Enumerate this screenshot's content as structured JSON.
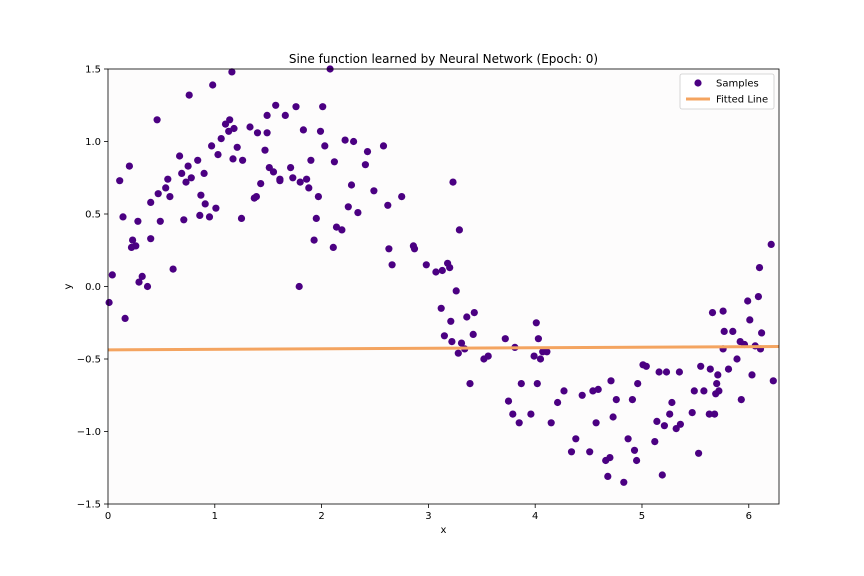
{
  "chart_data": {
    "type": "scatter",
    "title": "Sine function learned by Neural Network (Epoch: 0)",
    "xlabel": "x",
    "ylabel": "y",
    "xlim": [
      0,
      6.283
    ],
    "ylim": [
      -1.5,
      1.5
    ],
    "xticks": [
      0,
      1,
      2,
      3,
      4,
      5,
      6
    ],
    "yticks": [
      -1.5,
      -1.0,
      -0.5,
      0.0,
      0.5,
      1.0,
      1.5
    ],
    "xtick_labels": [
      "0",
      "1",
      "2",
      "3",
      "4",
      "5",
      "6"
    ],
    "ytick_labels": [
      "−1.5",
      "−1.0",
      "−0.5",
      "0.0",
      "0.5",
      "1.0",
      "1.5"
    ],
    "grid": false,
    "legend_position": "upper right",
    "colors": {
      "samples": "#4b0082",
      "fitted": "#f4a460"
    },
    "series": [
      {
        "name": "Samples",
        "kind": "scatter",
        "points": [
          [
            0.01,
            -0.11
          ],
          [
            0.04,
            0.08
          ],
          [
            0.11,
            0.73
          ],
          [
            0.14,
            0.48
          ],
          [
            0.16,
            -0.22
          ],
          [
            0.2,
            0.83
          ],
          [
            0.22,
            0.27
          ],
          [
            0.23,
            0.32
          ],
          [
            0.26,
            0.28
          ],
          [
            0.28,
            0.45
          ],
          [
            0.29,
            0.03
          ],
          [
            0.32,
            0.07
          ],
          [
            0.37,
            0.0
          ],
          [
            0.4,
            0.58
          ],
          [
            0.4,
            0.33
          ],
          [
            0.46,
            1.15
          ],
          [
            0.47,
            0.64
          ],
          [
            0.49,
            0.45
          ],
          [
            0.54,
            0.68
          ],
          [
            0.56,
            0.74
          ],
          [
            0.58,
            0.62
          ],
          [
            0.61,
            0.12
          ],
          [
            0.67,
            0.9
          ],
          [
            0.69,
            0.78
          ],
          [
            0.71,
            0.46
          ],
          [
            0.73,
            0.72
          ],
          [
            0.75,
            0.83
          ],
          [
            0.76,
            1.32
          ],
          [
            0.78,
            0.75
          ],
          [
            0.84,
            0.87
          ],
          [
            0.86,
            0.49
          ],
          [
            0.87,
            0.63
          ],
          [
            0.9,
            0.78
          ],
          [
            0.91,
            0.57
          ],
          [
            0.97,
            0.97
          ],
          [
            0.98,
            1.39
          ],
          [
            1.01,
            0.54
          ],
          [
            1.06,
            1.02
          ],
          [
            1.1,
            1.12
          ],
          [
            1.13,
            1.07
          ],
          [
            1.14,
            1.15
          ],
          [
            1.16,
            1.48
          ],
          [
            1.17,
            0.88
          ],
          [
            1.18,
            1.09
          ],
          [
            1.21,
            0.96
          ],
          [
            1.25,
            0.47
          ],
          [
            1.26,
            0.87
          ],
          [
            1.33,
            1.1
          ],
          [
            1.37,
            0.61
          ],
          [
            1.39,
            0.62
          ],
          [
            1.4,
            1.06
          ],
          [
            1.43,
            0.71
          ],
          [
            1.47,
            0.94
          ],
          [
            1.49,
            1.18
          ],
          [
            1.49,
            1.06
          ],
          [
            1.51,
            0.82
          ],
          [
            1.55,
            0.79
          ],
          [
            1.57,
            1.25
          ],
          [
            1.61,
            0.73
          ],
          [
            1.61,
            0.74
          ],
          [
            1.66,
            1.18
          ],
          [
            1.71,
            0.82
          ],
          [
            1.73,
            0.75
          ],
          [
            1.76,
            1.24
          ],
          [
            1.79,
            0.0
          ],
          [
            1.8,
            0.72
          ],
          [
            1.83,
            1.08
          ],
          [
            1.86,
            0.74
          ],
          [
            1.88,
            0.68
          ],
          [
            1.9,
            0.87
          ],
          [
            1.93,
            0.32
          ],
          [
            1.95,
            0.47
          ],
          [
            1.97,
            0.62
          ],
          [
            1.99,
            1.07
          ],
          [
            2.01,
            1.24
          ],
          [
            2.03,
            0.97
          ],
          [
            2.08,
            1.5
          ],
          [
            2.11,
            0.27
          ],
          [
            2.12,
            0.86
          ],
          [
            2.14,
            0.41
          ],
          [
            2.19,
            0.39
          ],
          [
            2.22,
            1.01
          ],
          [
            2.25,
            0.55
          ],
          [
            2.28,
            0.7
          ],
          [
            2.3,
            1.0
          ],
          [
            2.34,
            0.51
          ],
          [
            2.41,
            0.84
          ],
          [
            2.43,
            0.93
          ],
          [
            2.49,
            0.66
          ],
          [
            2.58,
            0.97
          ],
          [
            2.62,
            0.56
          ],
          [
            2.63,
            0.26
          ],
          [
            2.66,
            0.15
          ],
          [
            2.75,
            0.62
          ],
          [
            2.86,
            0.28
          ],
          [
            2.98,
            0.15
          ],
          [
            3.07,
            0.1
          ],
          [
            3.12,
            -0.15
          ],
          [
            3.13,
            0.11
          ],
          [
            3.15,
            -0.34
          ],
          [
            3.18,
            0.16
          ],
          [
            3.2,
            0.13
          ],
          [
            3.21,
            -0.24
          ],
          [
            3.22,
            -0.38
          ],
          [
            3.23,
            0.72
          ],
          [
            3.26,
            -0.03
          ],
          [
            3.28,
            -0.46
          ],
          [
            3.29,
            0.39
          ],
          [
            3.31,
            -0.39
          ],
          [
            3.34,
            -0.43
          ],
          [
            3.36,
            -0.21
          ],
          [
            3.39,
            -0.67
          ],
          [
            3.42,
            -0.33
          ],
          [
            3.43,
            -0.18
          ],
          [
            3.52,
            -0.5
          ],
          [
            3.56,
            -0.48
          ],
          [
            3.72,
            -0.36
          ],
          [
            3.75,
            -0.79
          ],
          [
            3.79,
            -0.88
          ],
          [
            3.81,
            -0.42
          ],
          [
            3.85,
            -0.94
          ],
          [
            3.87,
            -0.67
          ],
          [
            3.96,
            -0.88
          ],
          [
            3.99,
            -0.48
          ],
          [
            4.01,
            -0.25
          ],
          [
            4.02,
            -0.67
          ],
          [
            4.03,
            -0.36
          ],
          [
            4.05,
            -0.5
          ],
          [
            4.07,
            -0.45
          ],
          [
            4.11,
            -0.45
          ],
          [
            4.15,
            -0.94
          ],
          [
            4.21,
            -0.8
          ],
          [
            4.27,
            -0.72
          ],
          [
            4.34,
            -1.14
          ],
          [
            4.38,
            -1.05
          ],
          [
            4.44,
            -0.75
          ],
          [
            4.51,
            -1.14
          ],
          [
            4.54,
            -0.72
          ],
          [
            4.57,
            -0.94
          ],
          [
            4.59,
            -0.71
          ],
          [
            4.66,
            -1.2
          ],
          [
            4.68,
            -1.31
          ],
          [
            4.7,
            -1.18
          ],
          [
            4.71,
            -0.65
          ],
          [
            4.73,
            -0.9
          ],
          [
            4.76,
            -0.78
          ],
          [
            4.83,
            -1.35
          ],
          [
            4.87,
            -1.05
          ],
          [
            4.91,
            -0.78
          ],
          [
            4.93,
            -1.13
          ],
          [
            4.95,
            -1.2
          ],
          [
            4.96,
            -0.67
          ],
          [
            5.01,
            -0.54
          ],
          [
            5.04,
            -0.55
          ],
          [
            5.12,
            -1.07
          ],
          [
            5.14,
            -0.93
          ],
          [
            5.16,
            -0.59
          ],
          [
            5.19,
            -1.3
          ],
          [
            5.21,
            -0.96
          ],
          [
            5.23,
            -0.59
          ],
          [
            5.26,
            -0.88
          ],
          [
            5.28,
            -0.8
          ],
          [
            5.32,
            -0.98
          ],
          [
            5.35,
            -0.59
          ],
          [
            5.36,
            -0.95
          ],
          [
            5.47,
            -0.87
          ],
          [
            5.49,
            -0.72
          ],
          [
            5.53,
            -1.15
          ],
          [
            5.55,
            -0.55
          ],
          [
            5.58,
            -0.72
          ],
          [
            5.63,
            -0.88
          ],
          [
            5.64,
            -0.57
          ],
          [
            5.66,
            -0.18
          ],
          [
            5.68,
            -0.88
          ],
          [
            5.69,
            -0.74
          ],
          [
            5.7,
            -0.67
          ],
          [
            5.71,
            -0.61
          ],
          [
            5.72,
            -0.72
          ],
          [
            5.76,
            -0.43
          ],
          [
            5.76,
            -0.17
          ],
          [
            5.77,
            -0.31
          ],
          [
            5.81,
            -0.57
          ],
          [
            5.85,
            -0.31
          ],
          [
            5.89,
            -0.5
          ],
          [
            5.92,
            -0.38
          ],
          [
            5.96,
            -0.4
          ],
          [
            5.99,
            -0.1
          ],
          [
            6.01,
            -0.23
          ],
          [
            6.03,
            -0.61
          ],
          [
            6.06,
            -0.41
          ],
          [
            6.09,
            -0.07
          ],
          [
            6.1,
            0.13
          ],
          [
            6.11,
            -0.43
          ],
          [
            6.12,
            -0.32
          ],
          [
            6.21,
            0.29
          ],
          [
            6.23,
            -0.65
          ],
          [
            5.93,
            -0.78
          ],
          [
            1.03,
            0.91
          ],
          [
            2.87,
            0.26
          ],
          [
            0.95,
            0.48
          ]
        ]
      },
      {
        "name": "Fitted Line",
        "kind": "line",
        "x": [
          0,
          6.283
        ],
        "y": [
          -0.437,
          -0.414
        ]
      }
    ]
  }
}
